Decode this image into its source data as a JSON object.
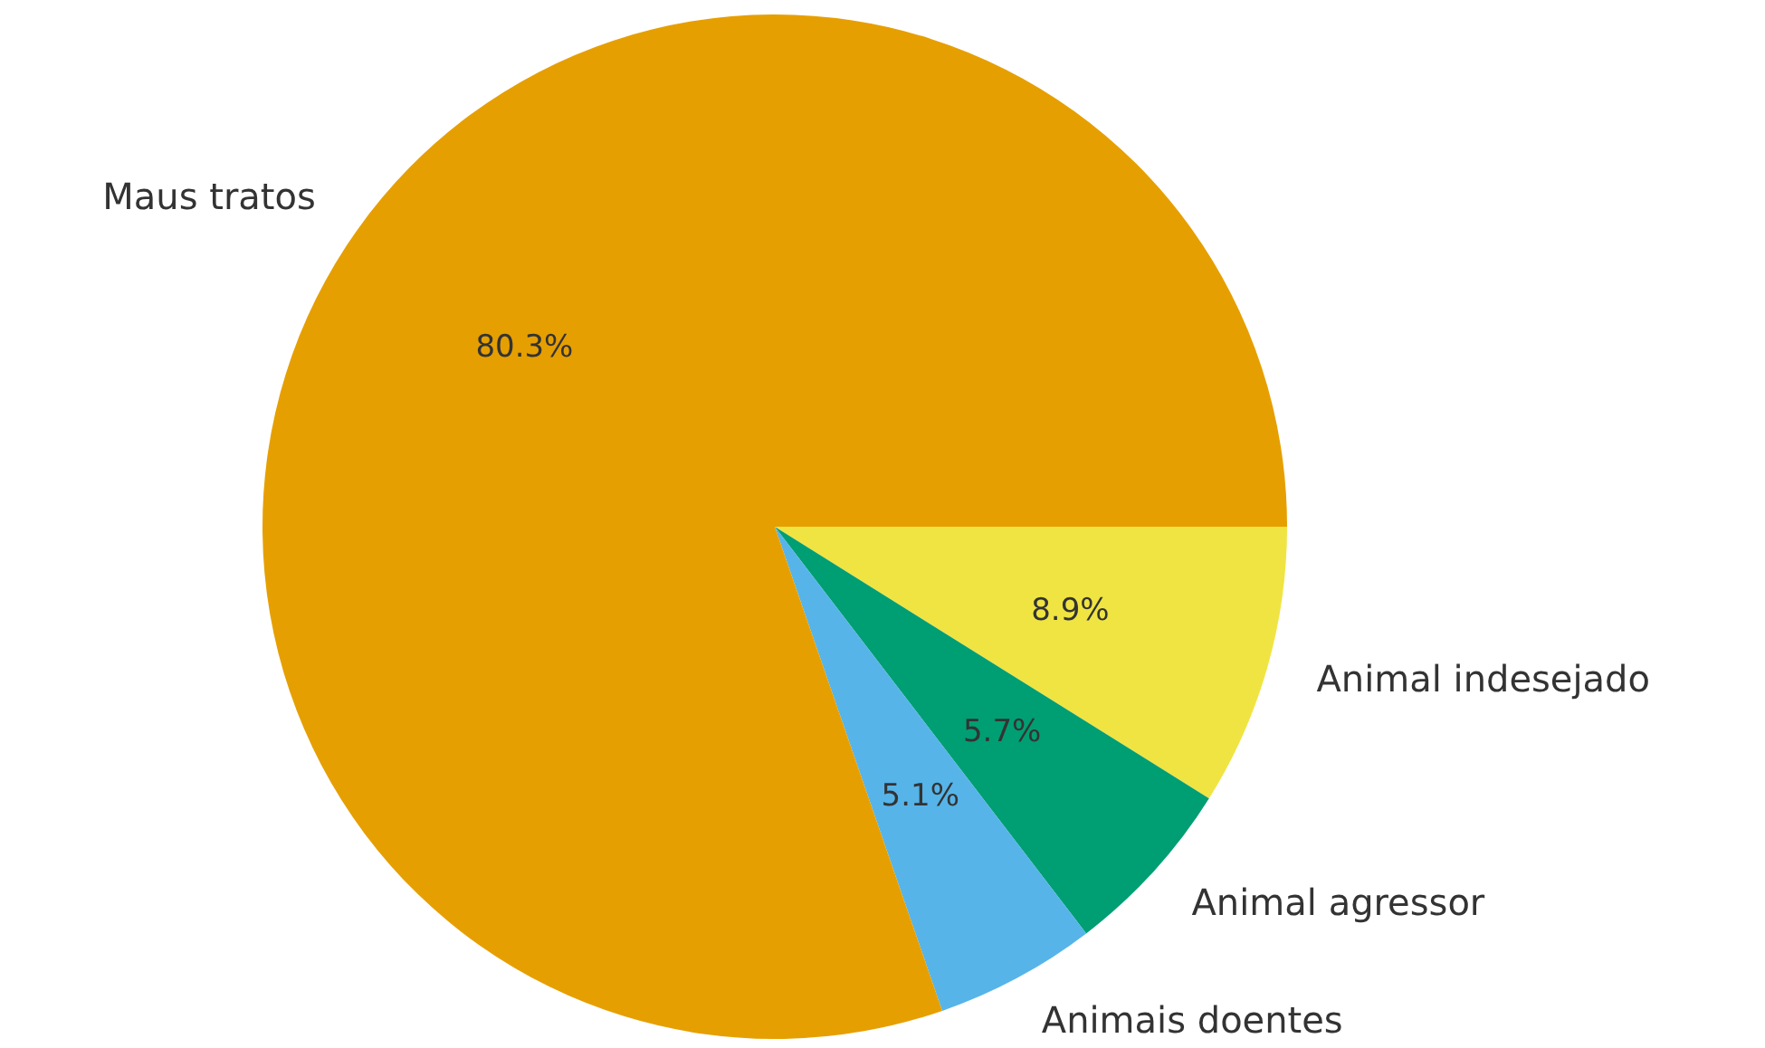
{
  "chart_data": {
    "type": "pie",
    "categories": [
      "Maus tratos",
      "Animais doentes",
      "Animal agressor",
      "Animal indesejado"
    ],
    "values": [
      80.3,
      5.1,
      5.7,
      8.9
    ],
    "colors": [
      "#e69f00",
      "#56b4e9",
      "#009e73",
      "#f0e442"
    ],
    "value_labels": [
      "80.3%",
      "5.1%",
      "5.7%",
      "8.9%"
    ],
    "legend": false
  }
}
